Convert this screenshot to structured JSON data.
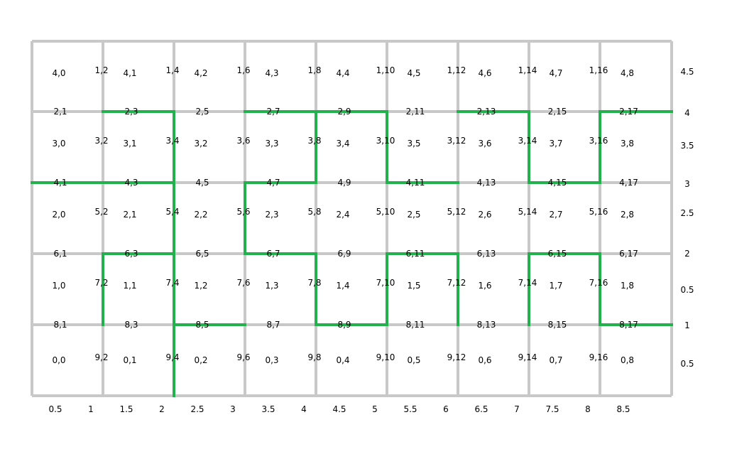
{
  "colors": {
    "grid": "#c8c8c8",
    "path": "#22b14c",
    "text": "#000000"
  },
  "grid": {
    "columns": 9,
    "rows": 5
  },
  "green_path_edges": [
    [
      [
        1,
        3
      ],
      [
        2,
        3
      ]
    ],
    [
      [
        2,
        3
      ],
      [
        2,
        0
      ]
    ],
    [
      [
        0,
        2
      ],
      [
        2,
        2
      ]
    ],
    [
      [
        1,
        1
      ],
      [
        2,
        1
      ]
    ],
    [
      [
        1,
        1
      ],
      [
        1,
        0
      ]
    ],
    [
      [
        2,
        -1
      ],
      [
        2,
        0
      ]
    ],
    [
      [
        2,
        0
      ],
      [
        3,
        0
      ]
    ],
    [
      [
        3,
        1
      ],
      [
        3,
        2
      ]
    ],
    [
      [
        3,
        2
      ],
      [
        4,
        2
      ]
    ],
    [
      [
        4,
        2
      ],
      [
        4,
        3
      ]
    ],
    [
      [
        3,
        3
      ],
      [
        5,
        3
      ]
    ],
    [
      [
        3,
        1
      ],
      [
        4,
        1
      ]
    ],
    [
      [
        4,
        1
      ],
      [
        4,
        0
      ]
    ],
    [
      [
        4,
        0
      ],
      [
        5,
        0
      ]
    ],
    [
      [
        5,
        0
      ],
      [
        5,
        1
      ]
    ],
    [
      [
        5,
        1
      ],
      [
        6,
        1
      ]
    ],
    [
      [
        6,
        1
      ],
      [
        6,
        0
      ]
    ],
    [
      [
        5,
        3
      ],
      [
        5,
        2
      ]
    ],
    [
      [
        5,
        2
      ],
      [
        6,
        2
      ]
    ],
    [
      [
        6,
        3
      ],
      [
        7,
        3
      ]
    ],
    [
      [
        7,
        3
      ],
      [
        7,
        2
      ]
    ],
    [
      [
        7,
        2
      ],
      [
        8,
        2
      ]
    ],
    [
      [
        8,
        2
      ],
      [
        8,
        3
      ]
    ],
    [
      [
        8,
        3
      ],
      [
        9,
        3
      ]
    ],
    [
      [
        7,
        0
      ],
      [
        7,
        1
      ]
    ],
    [
      [
        7,
        1
      ],
      [
        8,
        1
      ]
    ],
    [
      [
        8,
        1
      ],
      [
        8,
        0
      ]
    ],
    [
      [
        8,
        0
      ],
      [
        9,
        0
      ]
    ]
  ],
  "center_labels": [
    [
      "4,0",
      "4,1",
      "4,2",
      "4,3",
      "4,4",
      "4,5",
      "4,6",
      "4,7",
      "4,8"
    ],
    [
      "3,0",
      "3,1",
      "3,2",
      "3,3",
      "3,4",
      "3,5",
      "3,6",
      "3,7",
      "3,8"
    ],
    [
      "2,0",
      "2,1",
      "2,2",
      "2,3",
      "2,4",
      "2,5",
      "2,6",
      "2,7",
      "2,8"
    ],
    [
      "1,0",
      "1,1",
      "1,2",
      "1,3",
      "1,4",
      "1,5",
      "1,6",
      "1,7",
      "1,8"
    ],
    [
      "0,0",
      "0,1",
      "0,2",
      "0,3",
      "0,4",
      "0,5",
      "0,6",
      "0,7",
      "0,8"
    ]
  ],
  "vertical_edge_labels": [
    [
      "1,2",
      "1,4",
      "1,6",
      "1,8",
      "1,10",
      "1,12",
      "1,14",
      "1,16"
    ],
    [
      "3,2",
      "3,4",
      "3,6",
      "3,8",
      "3,10",
      "3,12",
      "3,14",
      "3,16"
    ],
    [
      "5,2",
      "5,4",
      "5,6",
      "5,8",
      "5,10",
      "5,12",
      "5,14",
      "5,16"
    ],
    [
      "7,2",
      "7,4",
      "7,6",
      "7,8",
      "7,10",
      "7,12",
      "7,14",
      "7,16"
    ],
    [
      "9,2",
      "9,4",
      "9,6",
      "9,8",
      "9,10",
      "9,12",
      "9,14",
      "9,16"
    ]
  ],
  "horizontal_edge_labels": [
    [
      "2,1",
      "2,3",
      "2,5",
      "2,7",
      "2,9",
      "2,11",
      "2,13",
      "2,15",
      "2,17"
    ],
    [
      "4,1",
      "4,3",
      "4,5",
      "4,7",
      "4,9",
      "4,11",
      "4,13",
      "4,15",
      "4,17"
    ],
    [
      "6,1",
      "6,3",
      "6,5",
      "6,7",
      "6,9",
      "6,11",
      "6,13",
      "6,15",
      "6,17"
    ],
    [
      "8,1",
      "8,3",
      "8,5",
      "8,7",
      "8,9",
      "8,11",
      "8,13",
      "8,15",
      "8,17"
    ]
  ],
  "x_axis_labels": [
    "0.5",
    "1",
    "1.5",
    "2",
    "2.5",
    "3",
    "3.5",
    "4",
    "4.5",
    "5",
    "5.5",
    "6",
    "6.5",
    "7",
    "7.5",
    "8",
    "8.5"
  ],
  "right_axis_labels": [
    "4.5",
    "4",
    "3.5",
    "3",
    "2.5",
    "2",
    "0.5",
    "1",
    "0.5"
  ]
}
